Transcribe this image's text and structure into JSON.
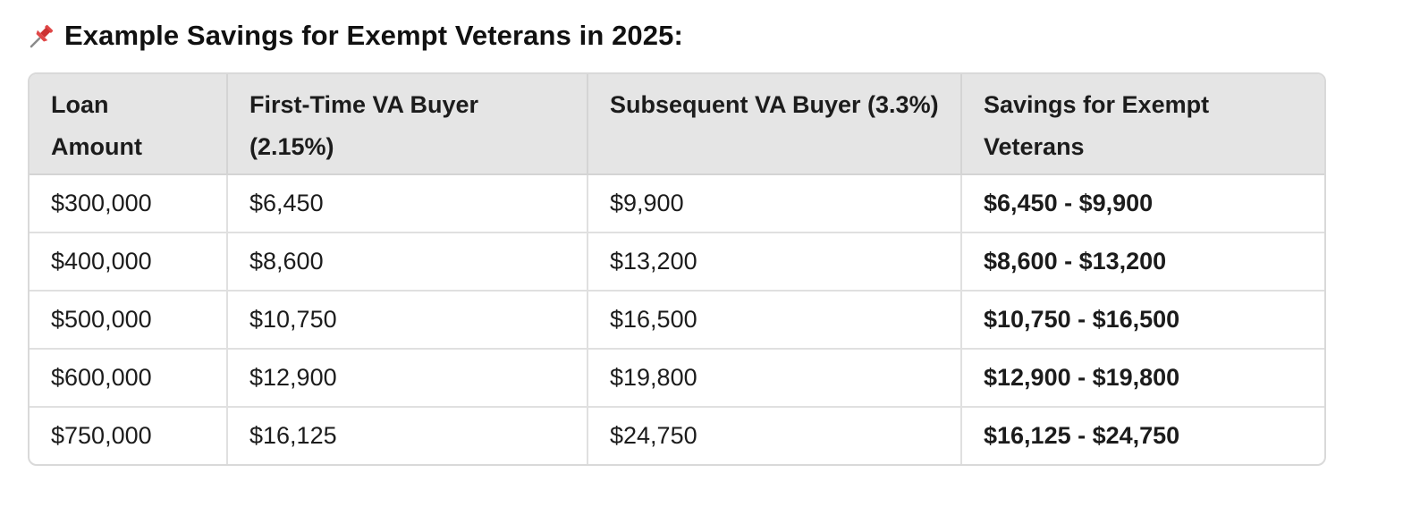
{
  "heading": {
    "icon": "pushpin-icon",
    "title": "Example Savings for Exempt Veterans in 2025:"
  },
  "table": {
    "headers": [
      "Loan Amount",
      "First-Time VA Buyer (2.15%)",
      "Subsequent VA Buyer (3.3%)",
      "Savings for Exempt Veterans"
    ],
    "rows": [
      [
        "$300,000",
        "$6,450",
        "$9,900",
        "$6,450 - $9,900"
      ],
      [
        "$400,000",
        "$8,600",
        "$13,200",
        "$8,600 - $13,200"
      ],
      [
        "$500,000",
        "$10,750",
        "$16,500",
        "$10,750 - $16,500"
      ],
      [
        "$600,000",
        "$12,900",
        "$19,800",
        "$12,900 - $19,800"
      ],
      [
        "$750,000",
        "$16,125",
        "$24,750",
        "$16,125 - $24,750"
      ]
    ]
  },
  "colors": {
    "header_bg": "#e5e5e5",
    "border": "#d9d9d9",
    "pin_red": "#d93a3a"
  }
}
